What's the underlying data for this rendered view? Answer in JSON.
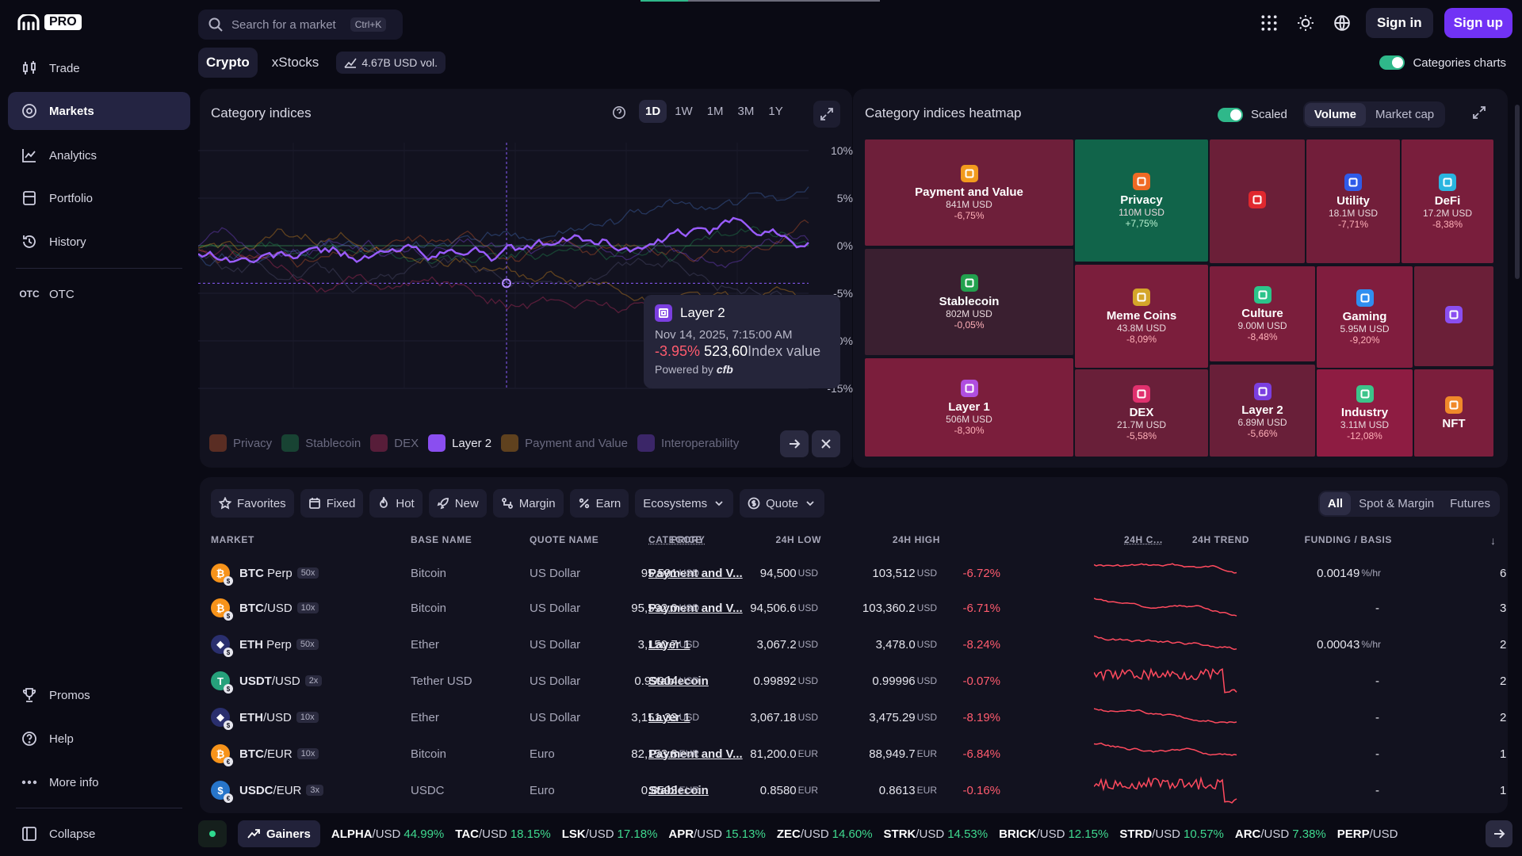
{
  "brand": {
    "pro": "PRO"
  },
  "sidebar": {
    "items": [
      {
        "label": "Trade"
      },
      {
        "label": "Markets"
      },
      {
        "label": "Analytics"
      },
      {
        "label": "Portfolio"
      },
      {
        "label": "History"
      },
      {
        "label": "OTC",
        "icon_text": "OTC"
      }
    ],
    "bottom": [
      {
        "label": "Promos"
      },
      {
        "label": "Help"
      },
      {
        "label": "More info"
      },
      {
        "label": "Collapse"
      }
    ]
  },
  "search": {
    "placeholder": "Search for a market",
    "shortcut": "Ctrl+K"
  },
  "header": {
    "signin": "Sign in",
    "signup": "Sign up"
  },
  "tabs": [
    {
      "label": "Crypto"
    },
    {
      "label": "xStocks"
    }
  ],
  "volume_badge": "4.67B USD vol.",
  "categories_charts_label": "Categories charts",
  "indices": {
    "title": "Category indices",
    "ranges": [
      "1D",
      "1W",
      "1M",
      "3M",
      "1Y"
    ],
    "active_range": "1D",
    "y_ticks": [
      "10%",
      "5%",
      "0%",
      "-5%",
      "-10%",
      "-15%"
    ],
    "legend": [
      {
        "label": "Privacy",
        "on": false,
        "color": "#e2622a"
      },
      {
        "label": "Stablecoin",
        "on": false,
        "color": "#24a05a"
      },
      {
        "label": "DEX",
        "on": false,
        "color": "#d9336a"
      },
      {
        "label": "Layer 2",
        "on": true,
        "color": "#8a4ef0"
      },
      {
        "label": "Payment and Value",
        "on": false,
        "color": "#f29b1e"
      },
      {
        "label": "Interoperability",
        "on": false,
        "color": "#8a4ef0"
      }
    ],
    "tooltip": {
      "name": "Layer 2",
      "date": "Nov 14, 2025, 7:15:00 AM",
      "change": "-3.95%",
      "value": "523,60",
      "value_label": "Index value",
      "powered_by": "Powered by",
      "powered_brand": "cfb"
    }
  },
  "heatmap": {
    "title": "Category indices heatmap",
    "scaled_label": "Scaled",
    "modes": [
      "Volume",
      "Market cap"
    ],
    "active_mode": "Volume",
    "tiles": [
      {
        "name": "Payment and Value",
        "vol": "841M USD",
        "chg": "-6,75%",
        "icon_color": "#f29b1e",
        "bg": "#6e1f3a"
      },
      {
        "name": "Privacy",
        "vol": "110M USD",
        "chg": "+7,75%",
        "icon_color": "#ef6a24",
        "bg": "#11644a"
      },
      {
        "name": "",
        "vol": "",
        "chg": "",
        "icon_color": "#e0282e",
        "bg": "#6b1f38"
      },
      {
        "name": "Utility",
        "vol": "18.1M USD",
        "chg": "-7,71%",
        "icon_color": "#2f5be8",
        "bg": "#721e3a"
      },
      {
        "name": "DeFi",
        "vol": "17.2M USD",
        "chg": "-8,38%",
        "icon_color": "#2ab5e0",
        "bg": "#791e3c"
      },
      {
        "name": "Stablecoin",
        "vol": "802M USD",
        "chg": "-0,05%",
        "icon_color": "#22a14e",
        "bg": "#3a1f30"
      },
      {
        "name": "Meme Coins",
        "vol": "43.8M USD",
        "chg": "-8,09%",
        "icon_color": "#d4a62a",
        "bg": "#7b1e3c"
      },
      {
        "name": "Culture",
        "vol": "9.00M USD",
        "chg": "-8,48%",
        "icon_color": "#2cc48a",
        "bg": "#7b1e3c"
      },
      {
        "name": "Gaming",
        "vol": "5.95M USD",
        "chg": "-9,20%",
        "icon_color": "#2f8ef0",
        "bg": "#801d3e"
      },
      {
        "name": "",
        "vol": "",
        "chg": "",
        "icon_color": "#8a4ef0",
        "bg": "#6b1f38"
      },
      {
        "name": "Layer 1",
        "vol": "506M USD",
        "chg": "-8,30%",
        "icon_color": "#b04ee0",
        "bg": "#7b1e3c"
      },
      {
        "name": "DEX",
        "vol": "21.7M USD",
        "chg": "-5,58%",
        "icon_color": "#e0316e",
        "bg": "#691f39"
      },
      {
        "name": "Layer 2",
        "vol": "6.89M USD",
        "chg": "-5,66%",
        "icon_color": "#7b3fe0",
        "bg": "#691f39"
      },
      {
        "name": "Industry",
        "vol": "3.11M USD",
        "chg": "-12,08%",
        "icon_color": "#3cc48a",
        "bg": "#8e1c42"
      },
      {
        "name": "NFT",
        "vol": "",
        "chg": "",
        "icon_color": "#f0892a",
        "bg": "#7b1e3c"
      }
    ]
  },
  "filters": [
    "Favorites",
    "Fixed",
    "Hot",
    "New",
    "Margin",
    "Earn",
    "Ecosystems",
    "Quote"
  ],
  "market_types": [
    "All",
    "Spot & Margin",
    "Futures"
  ],
  "active_market_type": "All",
  "table": {
    "headers": [
      "MARKET",
      "BASE NAME",
      "QUOTE NAME",
      "CATEGORY",
      "PRICE",
      "24H LOW",
      "24H HIGH",
      "24H C...",
      "24H TREND",
      "FUNDING / BASIS"
    ],
    "rows": [
      {
        "base": "BTC",
        "sep": " ",
        "quote": "Perp",
        "lev": "50x",
        "base_name": "Bitcoin",
        "quote_name": "US Dollar",
        "category": "Payment and V...",
        "price": "95,591",
        "price_unit": "USD",
        "low": "94,500",
        "low_unit": "USD",
        "high": "103,512",
        "high_unit": "USD",
        "change": "-6.72%",
        "funding": "0.00149",
        "funding_unit": "%/hr",
        "extra": "6",
        "coin_color": "#f7931a",
        "coin_glyph": "₿",
        "qglyph": "$"
      },
      {
        "base": "BTC",
        "sep": "/",
        "quote": "USD",
        "lev": "10x",
        "base_name": "Bitcoin",
        "quote_name": "US Dollar",
        "category": "Payment and V...",
        "price": "95,592.0",
        "price_unit": "USD",
        "low": "94,506.6",
        "low_unit": "USD",
        "high": "103,360.2",
        "high_unit": "USD",
        "change": "-6.71%",
        "funding": "-",
        "funding_unit": "",
        "extra": "3",
        "coin_color": "#f7931a",
        "coin_glyph": "₿",
        "qglyph": "$"
      },
      {
        "base": "ETH",
        "sep": " ",
        "quote": "Perp",
        "lev": "50x",
        "base_name": "Ether",
        "quote_name": "US Dollar",
        "category": "Layer 1",
        "price": "3,150.7",
        "price_unit": "USD",
        "low": "3,067.2",
        "low_unit": "USD",
        "high": "3,478.0",
        "high_unit": "USD",
        "change": "-8.24%",
        "funding": "0.00043",
        "funding_unit": "%/hr",
        "extra": "2",
        "coin_color": "#2a2f6e",
        "coin_glyph": "◆",
        "qglyph": "$"
      },
      {
        "base": "USDT",
        "sep": "/",
        "quote": "USD",
        "lev": "2x",
        "base_name": "Tether USD",
        "quote_name": "US Dollar",
        "category": "Stablecoin",
        "price": "0.99904",
        "price_unit": "USD",
        "low": "0.99892",
        "low_unit": "USD",
        "high": "0.99996",
        "high_unit": "USD",
        "change": "-0.07%",
        "funding": "-",
        "funding_unit": "",
        "extra": "2",
        "coin_color": "#26a17b",
        "coin_glyph": "T",
        "qglyph": "$"
      },
      {
        "base": "ETH",
        "sep": "/",
        "quote": "USD",
        "lev": "10x",
        "base_name": "Ether",
        "quote_name": "US Dollar",
        "category": "Layer 1",
        "price": "3,151.33",
        "price_unit": "USD",
        "low": "3,067.18",
        "low_unit": "USD",
        "high": "3,475.29",
        "high_unit": "USD",
        "change": "-8.19%",
        "funding": "-",
        "funding_unit": "",
        "extra": "2",
        "coin_color": "#2a2f6e",
        "coin_glyph": "◆",
        "qglyph": "$"
      },
      {
        "base": "BTC",
        "sep": "/",
        "quote": "EUR",
        "lev": "10x",
        "base_name": "Bitcoin",
        "quote_name": "Euro",
        "category": "Payment and V...",
        "price": "82,153.8",
        "price_unit": "EUR",
        "low": "81,200.0",
        "low_unit": "EUR",
        "high": "88,949.7",
        "high_unit": "EUR",
        "change": "-6.84%",
        "funding": "-",
        "funding_unit": "",
        "extra": "1",
        "coin_color": "#f7931a",
        "coin_glyph": "₿",
        "qglyph": "€"
      },
      {
        "base": "USDC",
        "sep": "/",
        "quote": "EUR",
        "lev": "3x",
        "base_name": "USDC",
        "quote_name": "Euro",
        "category": "Stablecoin",
        "price": "0.8593",
        "price_unit": "EUR",
        "low": "0.8580",
        "low_unit": "EUR",
        "high": "0.8613",
        "high_unit": "EUR",
        "change": "-0.16%",
        "funding": "-",
        "funding_unit": "",
        "extra": "1",
        "coin_color": "#2775ca",
        "coin_glyph": "$",
        "qglyph": "€"
      }
    ]
  },
  "ticker": {
    "gainers_label": "Gainers",
    "items": [
      {
        "base": "ALPHA",
        "quote": "/USD",
        "pct": "44.99%"
      },
      {
        "base": "TAC",
        "quote": "/USD",
        "pct": "18.15%"
      },
      {
        "base": "LSK",
        "quote": "/USD",
        "pct": "17.18%"
      },
      {
        "base": "APR",
        "quote": "/USD",
        "pct": "15.13%"
      },
      {
        "base": "ZEC",
        "quote": "/USD",
        "pct": "14.60%"
      },
      {
        "base": "STRK",
        "quote": "/USD",
        "pct": "14.53%"
      },
      {
        "base": "BRICK",
        "quote": "/USD",
        "pct": "12.15%"
      },
      {
        "base": "STRD",
        "quote": "/USD",
        "pct": "10.57%"
      },
      {
        "base": "ARC",
        "quote": "/USD",
        "pct": "7.38%"
      },
      {
        "base": "PERP",
        "quote": "/USD",
        "pct": ""
      }
    ]
  },
  "colors": {
    "accent": "#7132f5",
    "positive": "#3fd98f",
    "negative": "#ff5b6e"
  }
}
